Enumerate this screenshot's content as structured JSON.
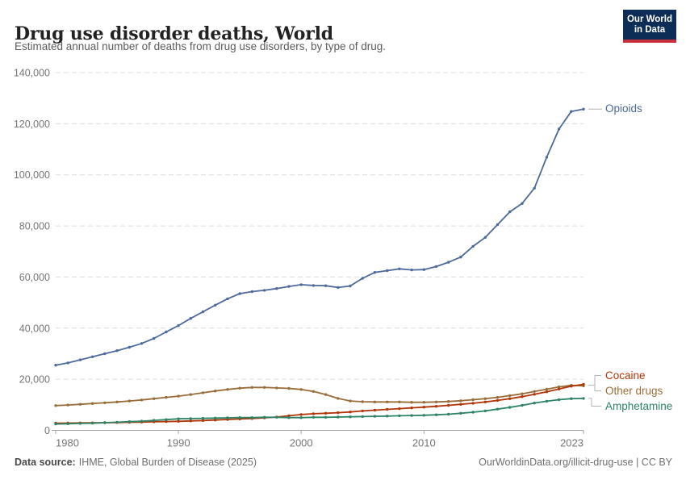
{
  "header": {
    "title": "Drug use disorder deaths, World",
    "subtitle": "Estimated annual number of deaths from drug use disorders, by type of drug.",
    "logo": {
      "line1": "Our World",
      "line2": "in Data",
      "bg_color": "#0C2D56",
      "bar_color": "#C9303E"
    }
  },
  "footer": {
    "datasource_label": "Data source:",
    "datasource_value": "IHME, Global Burden of Disease (2025)",
    "credit": "OurWorldinData.org/illicit-drug-use | CC BY"
  },
  "chart_data": {
    "type": "line",
    "title": "Drug use disorder deaths, World",
    "subtitle": "Estimated annual number of deaths from drug use disorders, by type of drug.",
    "xlabel": "",
    "ylabel": "",
    "xlim": [
      1980,
      2023
    ],
    "ylim": [
      0,
      140000
    ],
    "grid": "dashed-horizontal",
    "legend_position": "right-of-line-ends",
    "point_markers": true,
    "x": [
      1980,
      1981,
      1982,
      1983,
      1984,
      1985,
      1986,
      1987,
      1988,
      1989,
      1990,
      1991,
      1992,
      1993,
      1994,
      1995,
      1996,
      1997,
      1998,
      1999,
      2000,
      2001,
      2002,
      2003,
      2004,
      2005,
      2006,
      2007,
      2008,
      2009,
      2010,
      2011,
      2012,
      2013,
      2014,
      2015,
      2016,
      2017,
      2018,
      2019,
      2020,
      2021,
      2022,
      2023
    ],
    "series": [
      {
        "name": "Opioids",
        "color": "#4C6A9C",
        "values": [
          25500,
          26400,
          27600,
          28800,
          30000,
          31200,
          32500,
          34000,
          36000,
          38500,
          41000,
          43800,
          46400,
          49000,
          51500,
          53500,
          54300,
          54800,
          55500,
          56300,
          57000,
          56700,
          56600,
          55900,
          56500,
          59500,
          61800,
          62500,
          63200,
          62800,
          62900,
          64100,
          65800,
          67800,
          72000,
          75500,
          80500,
          85500,
          88800,
          94800,
          106900,
          117900,
          124800,
          125700
        ]
      },
      {
        "name": "Cocaine",
        "color": "#B13507",
        "values": [
          2800,
          2850,
          2900,
          2950,
          3000,
          3050,
          3150,
          3250,
          3350,
          3450,
          3550,
          3700,
          3850,
          4050,
          4250,
          4450,
          4650,
          4900,
          5200,
          5700,
          6200,
          6500,
          6700,
          6900,
          7200,
          7600,
          7900,
          8200,
          8500,
          8800,
          9100,
          9400,
          9800,
          10200,
          10600,
          11100,
          11700,
          12400,
          13200,
          14100,
          15100,
          16200,
          17300,
          18000
        ]
      },
      {
        "name": "Other drugs",
        "color": "#996D39",
        "values": [
          9700,
          9900,
          10200,
          10500,
          10800,
          11100,
          11500,
          11900,
          12400,
          12900,
          13400,
          14000,
          14700,
          15400,
          16000,
          16500,
          16800,
          16800,
          16600,
          16400,
          16000,
          15200,
          14000,
          12500,
          11500,
          11200,
          11100,
          11100,
          11100,
          11000,
          11000,
          11100,
          11300,
          11600,
          12000,
          12400,
          12900,
          13600,
          14300,
          15200,
          16100,
          17000,
          17600,
          17400
        ]
      },
      {
        "name": "Amphetamine",
        "color": "#2C8465",
        "values": [
          2500,
          2600,
          2700,
          2800,
          3000,
          3200,
          3400,
          3600,
          3900,
          4200,
          4500,
          4600,
          4700,
          4800,
          4900,
          5000,
          5000,
          5100,
          5100,
          5000,
          5000,
          5100,
          5100,
          5200,
          5300,
          5400,
          5500,
          5600,
          5700,
          5800,
          5900,
          6100,
          6300,
          6700,
          7100,
          7600,
          8300,
          9000,
          9800,
          10700,
          11400,
          12000,
          12400,
          12500
        ]
      }
    ],
    "yticks": [
      {
        "value": 0,
        "label": "0"
      },
      {
        "value": 20000,
        "label": "20,000"
      },
      {
        "value": 40000,
        "label": "40,000"
      },
      {
        "value": 60000,
        "label": "60,000"
      },
      {
        "value": 80000,
        "label": "80,000"
      },
      {
        "value": 100000,
        "label": "100,000"
      },
      {
        "value": 120000,
        "label": "120,000"
      },
      {
        "value": 140000,
        "label": "140,000"
      }
    ],
    "xticks": [
      {
        "value": 1980,
        "label": "1980",
        "align": "start"
      },
      {
        "value": 1990,
        "label": "1990",
        "align": "middle"
      },
      {
        "value": 2000,
        "label": "2000",
        "align": "middle"
      },
      {
        "value": 2010,
        "label": "2010",
        "align": "middle"
      },
      {
        "value": 2023,
        "label": "2023",
        "align": "end"
      }
    ]
  }
}
